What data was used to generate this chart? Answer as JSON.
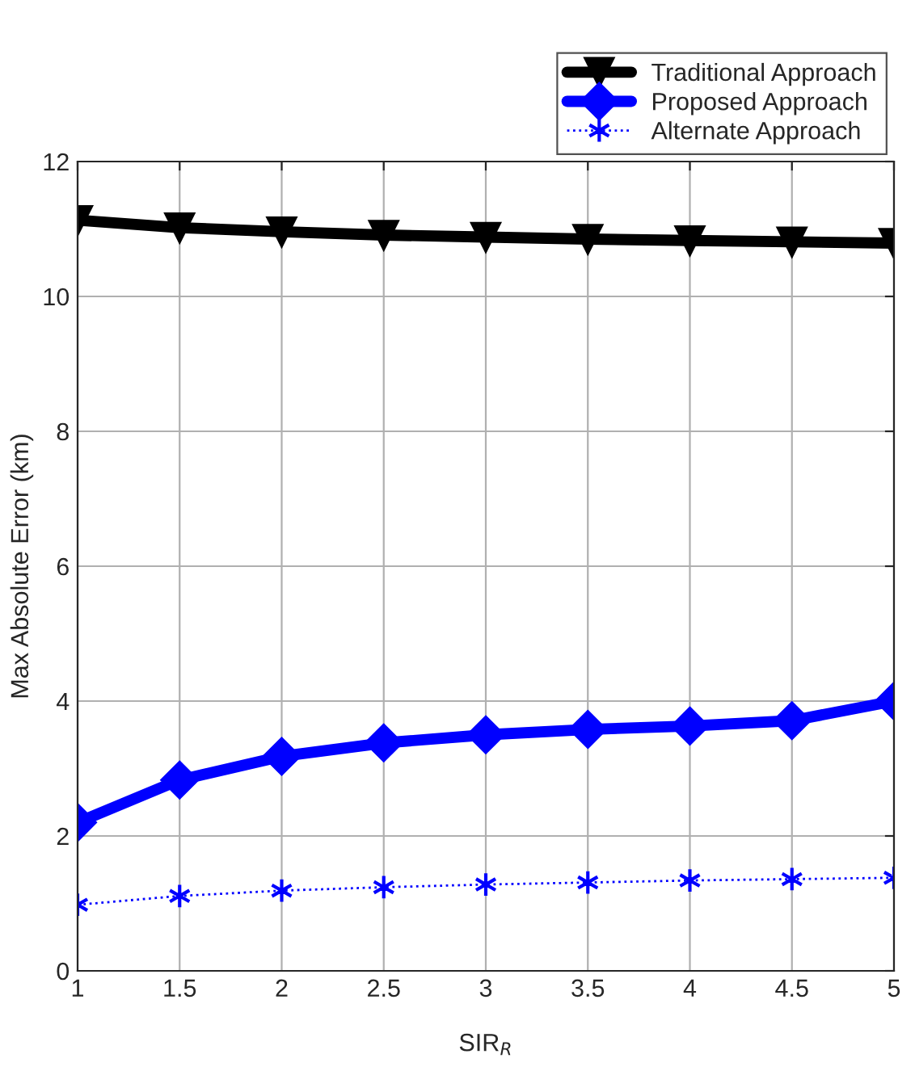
{
  "chart_data": {
    "type": "line",
    "xlabel": "SIR$_{R}$",
    "ylabel": "Max Absolute Error (km)",
    "x": [
      1,
      1.5,
      2,
      2.5,
      3,
      3.5,
      4,
      4.5,
      5
    ],
    "series": [
      {
        "name": "Traditional Approach",
        "color": "#000000",
        "marker": "triangle",
        "line_style": "solid",
        "values": [
          11.13,
          11.02,
          10.96,
          10.91,
          10.88,
          10.85,
          10.83,
          10.81,
          10.79
        ]
      },
      {
        "name": "Proposed Approach",
        "color": "#0000ff",
        "marker": "diamond",
        "line_style": "solid",
        "values": [
          2.2,
          2.83,
          3.18,
          3.38,
          3.5,
          3.58,
          3.63,
          3.71,
          4.0
        ]
      },
      {
        "name": "Alternate Approach",
        "color": "#0000ff",
        "marker": "cross",
        "line_style": "dotted",
        "values": [
          0.98,
          1.11,
          1.19,
          1.24,
          1.28,
          1.31,
          1.34,
          1.36,
          1.38
        ]
      }
    ],
    "xlim": [
      1,
      5
    ],
    "xticks": [
      1,
      1.5,
      2,
      2.5,
      3,
      3.5,
      4,
      4.5,
      5
    ],
    "ylim": [
      0,
      12
    ],
    "yticks": [
      0,
      2,
      4,
      6,
      8,
      10,
      12
    ],
    "grid": true,
    "legend": "top right"
  }
}
